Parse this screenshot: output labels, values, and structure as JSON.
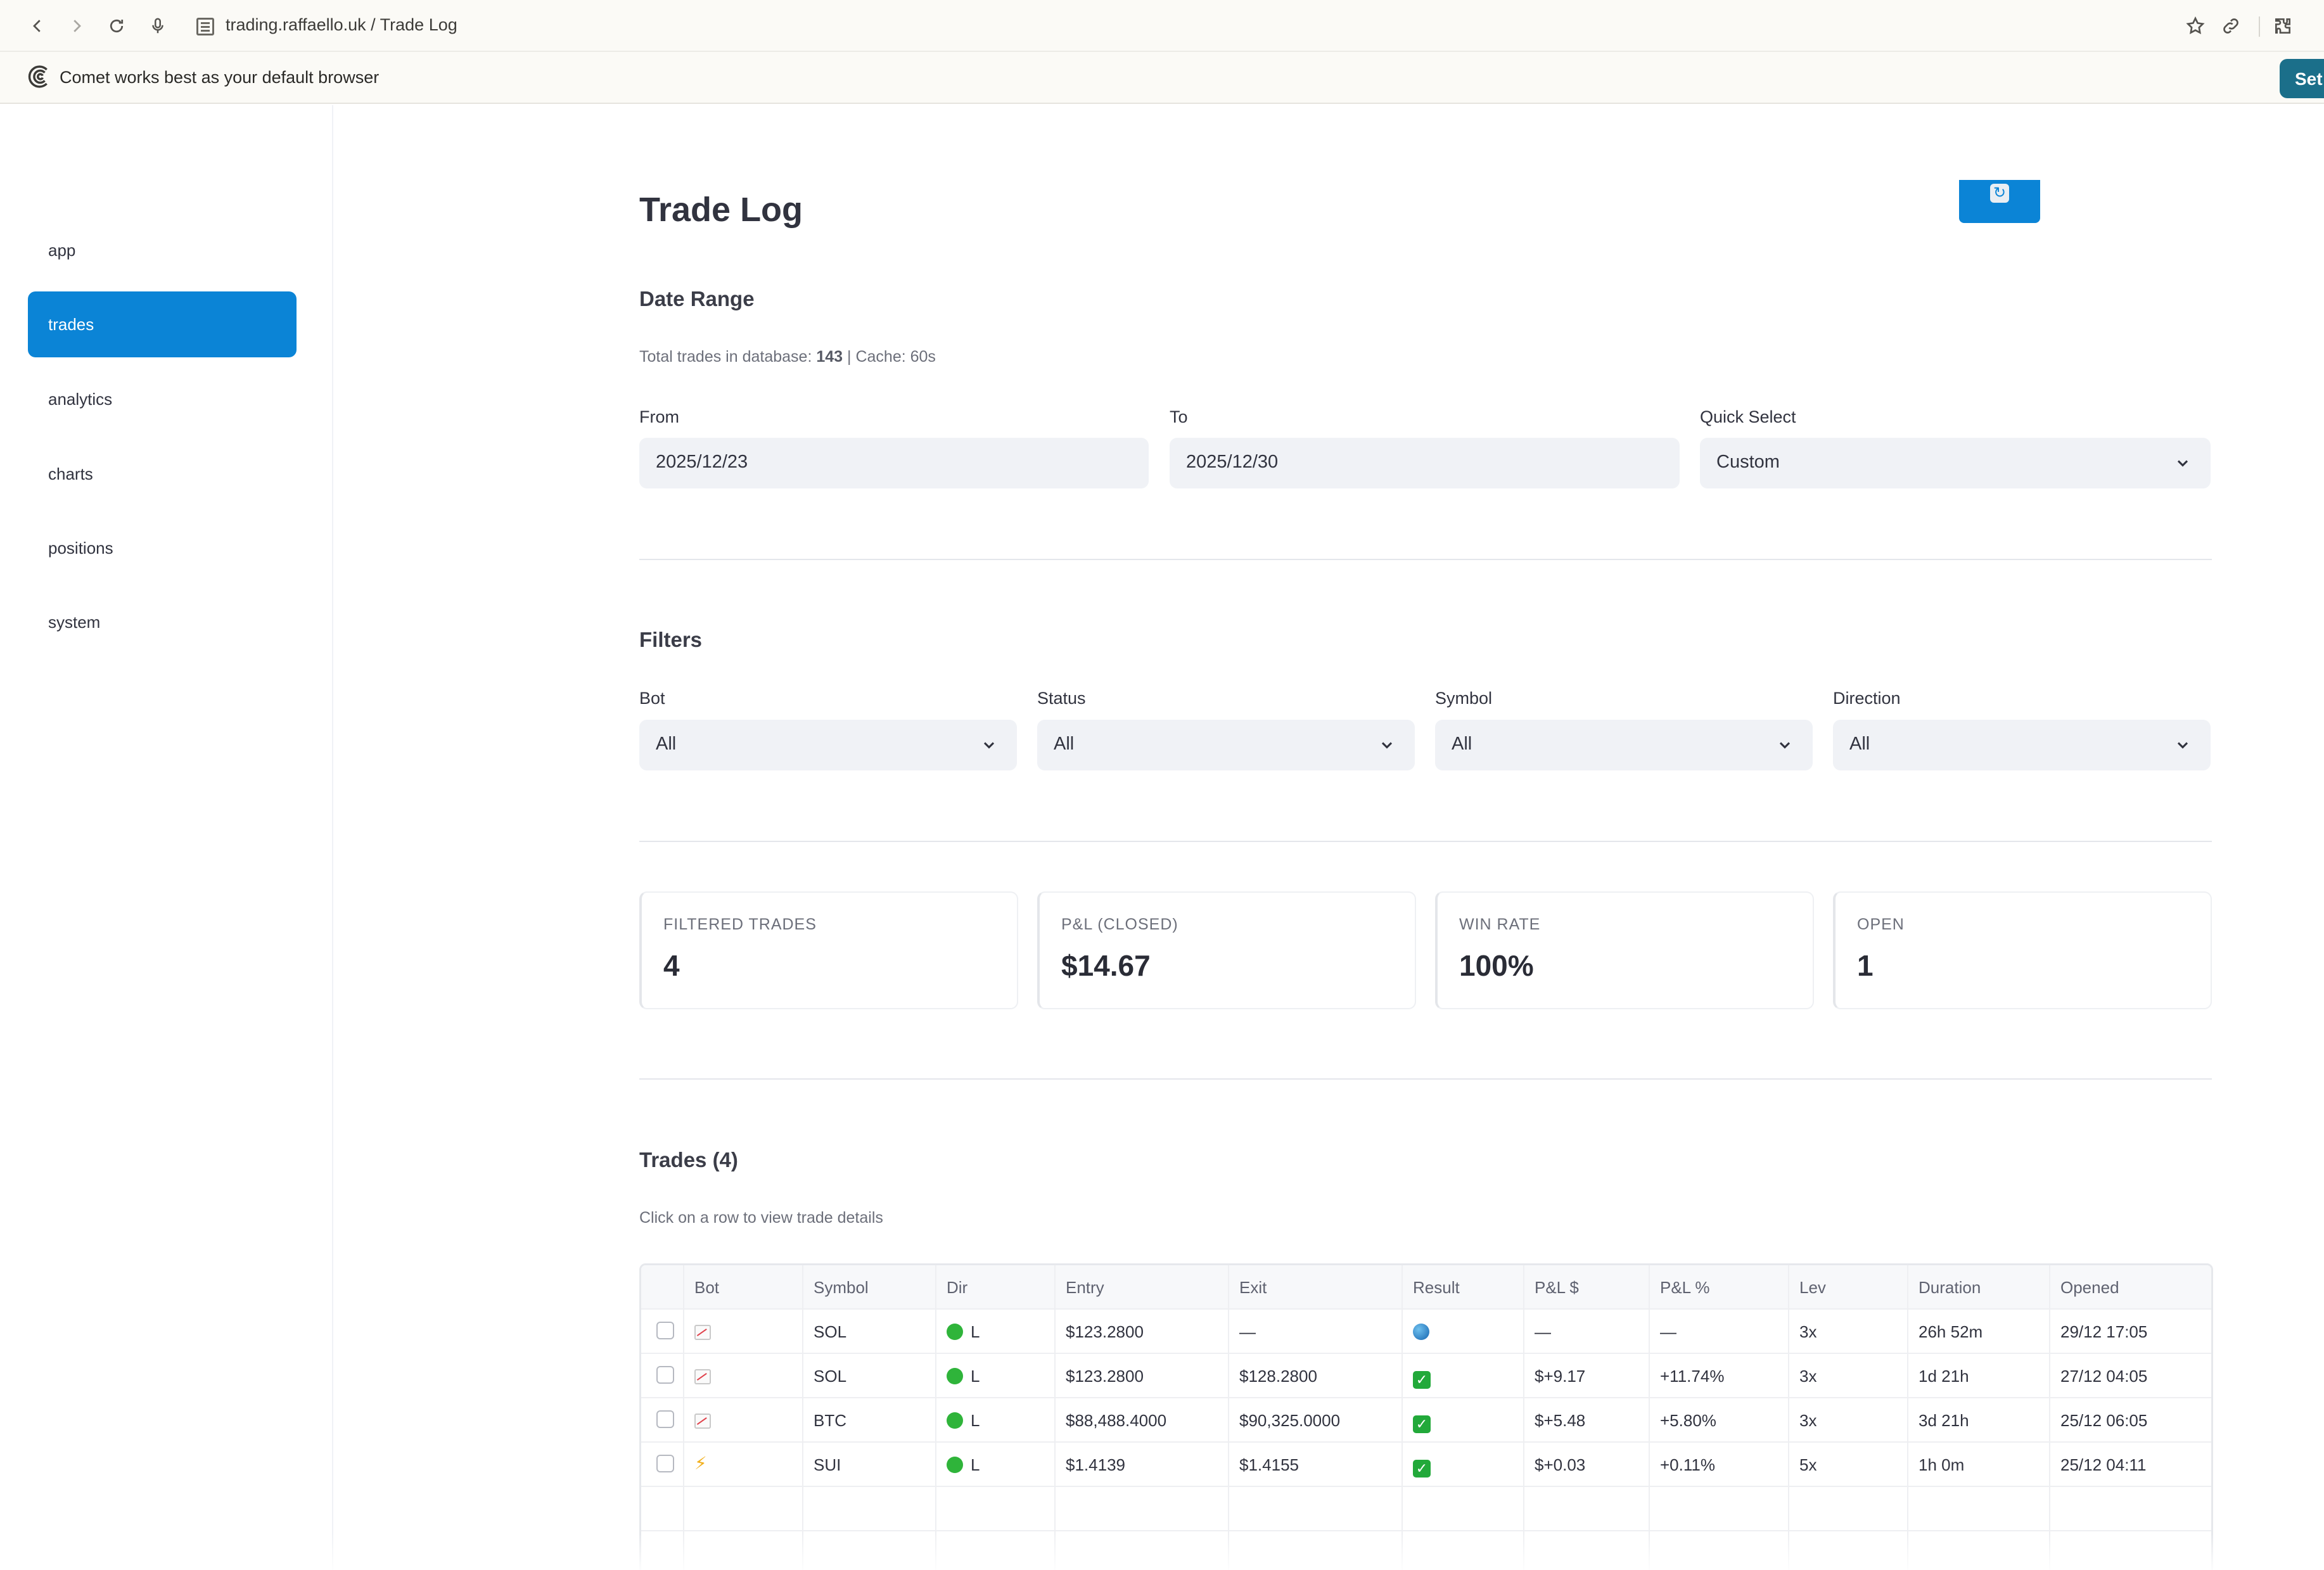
{
  "browser": {
    "url": "trading.raffaello.uk / Trade Log",
    "notice_text": "Comet works best as your default browser",
    "notice_button": "Set"
  },
  "sidebar": {
    "items": [
      {
        "label": "app",
        "active": false
      },
      {
        "label": "trades",
        "active": true
      },
      {
        "label": "analytics",
        "active": false
      },
      {
        "label": "charts",
        "active": false
      },
      {
        "label": "positions",
        "active": false
      },
      {
        "label": "system",
        "active": false
      }
    ]
  },
  "page": {
    "title": "Trade Log",
    "refresh_icon": "refresh-icon"
  },
  "date_range": {
    "heading": "Date Range",
    "caption_prefix": "Total trades in database: ",
    "total_trades": "143",
    "caption_suffix": " | Cache: 60s",
    "from_label": "From",
    "from_value": "2025/12/23",
    "to_label": "To",
    "to_value": "2025/12/30",
    "quick_label": "Quick Select",
    "quick_value": "Custom"
  },
  "filters": {
    "heading": "Filters",
    "bot_label": "Bot",
    "bot_value": "All",
    "status_label": "Status",
    "status_value": "All",
    "symbol_label": "Symbol",
    "symbol_value": "All",
    "direction_label": "Direction",
    "direction_value": "All"
  },
  "metrics": [
    {
      "label": "FILTERED TRADES",
      "value": "4"
    },
    {
      "label": "P&L (CLOSED)",
      "value": "$14.67"
    },
    {
      "label": "WIN RATE",
      "value": "100%"
    },
    {
      "label": "OPEN",
      "value": "1"
    }
  ],
  "trades": {
    "heading": "Trades (4)",
    "caption": "Click on a row to view trade details",
    "columns": [
      "Bot",
      "Symbol",
      "Dir",
      "Entry",
      "Exit",
      "Result",
      "P&L $",
      "P&L %",
      "Lev",
      "Duration",
      "Opened"
    ],
    "rows": [
      {
        "bot": "chart-icon",
        "symbol": "SOL",
        "dir": "L",
        "entry": "$123.2800",
        "exit": "—",
        "result": "open",
        "pnl": "—",
        "pnl_pct": "—",
        "lev": "3x",
        "duration": "26h 52m",
        "opened": "29/12 17:05"
      },
      {
        "bot": "chart-icon",
        "symbol": "SOL",
        "dir": "L",
        "entry": "$123.2800",
        "exit": "$128.2800",
        "result": "win",
        "pnl": "$+9.17",
        "pnl_pct": "+11.74%",
        "lev": "3x",
        "duration": "1d 21h",
        "opened": "27/12 04:05"
      },
      {
        "bot": "chart-icon",
        "symbol": "BTC",
        "dir": "L",
        "entry": "$88,488.4000",
        "exit": "$90,325.0000",
        "result": "win",
        "pnl": "$+5.48",
        "pnl_pct": "+5.80%",
        "lev": "3x",
        "duration": "3d 21h",
        "opened": "25/12 06:05"
      },
      {
        "bot": "lightning-icon",
        "symbol": "SUI",
        "dir": "L",
        "entry": "$1.4139",
        "exit": "$1.4155",
        "result": "win",
        "pnl": "$+0.03",
        "pnl_pct": "+0.11%",
        "lev": "5x",
        "duration": "1h 0m",
        "opened": "25/12 04:11"
      }
    ]
  },
  "colors": {
    "accent": "#0b84d6",
    "notice_button": "#1b6f8a",
    "long_dot": "#2fb43a",
    "win_check": "#22a93a"
  }
}
